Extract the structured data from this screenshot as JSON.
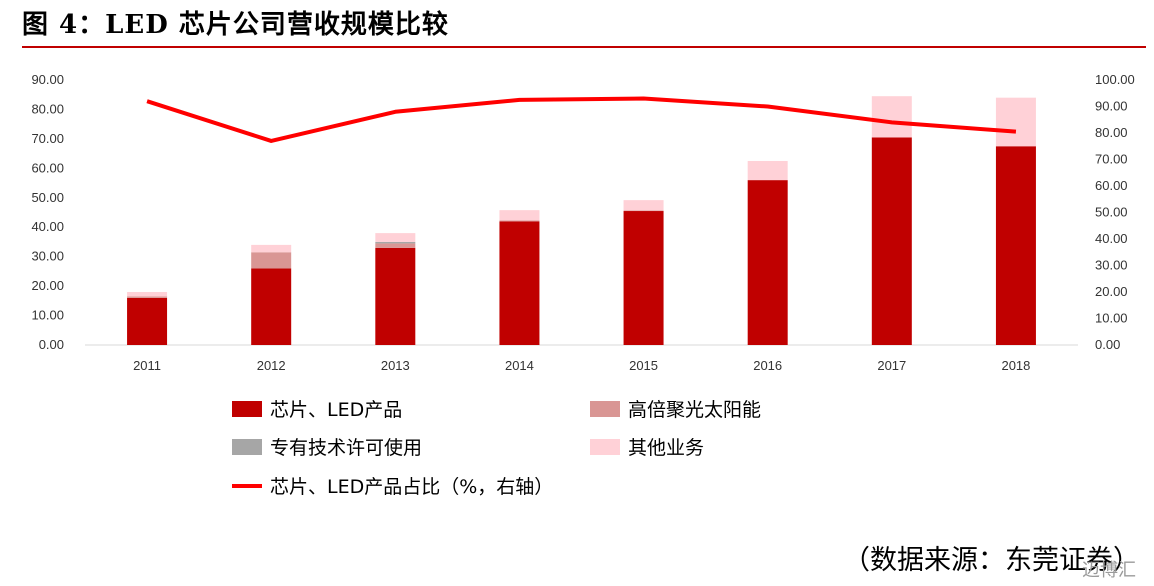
{
  "title": "图 4：LED 芯片公司营收规模比较",
  "source": "（数据来源：东莞证券）",
  "watermark": "迈博汇",
  "colors": {
    "chip": "#c00000",
    "solar": "#d99694",
    "license": "#a6a6a6",
    "other": "#ffd1d7",
    "line": "#ff0000",
    "axis": "#d9d9d9",
    "title_rule": "#c00000"
  },
  "chart_data": {
    "type": "bar",
    "stacked": true,
    "categories": [
      "2011",
      "2012",
      "2013",
      "2014",
      "2015",
      "2016",
      "2017",
      "2018"
    ],
    "left_axis": {
      "min": 0,
      "max": 90,
      "step": 10,
      "ticks": [
        "0.00",
        "10.00",
        "20.00",
        "30.00",
        "40.00",
        "50.00",
        "60.00",
        "70.00",
        "80.00",
        "90.00"
      ]
    },
    "right_axis": {
      "min": 0,
      "max": 100,
      "step": 10,
      "ticks": [
        "0.00",
        "10.00",
        "20.00",
        "30.00",
        "40.00",
        "50.00",
        "60.00",
        "70.00",
        "80.00",
        "90.00",
        "100.00"
      ]
    },
    "series": [
      {
        "name": "芯片、LED产品",
        "key": "chip",
        "axis": "left",
        "values": [
          16.0,
          26.0,
          33.0,
          42.0,
          45.5,
          56.0,
          70.5,
          67.5
        ]
      },
      {
        "name": "高倍聚光太阳能",
        "key": "solar",
        "axis": "left",
        "values": [
          0.5,
          5.5,
          1.5,
          0.3,
          0.2,
          0.0,
          0.0,
          0.0
        ]
      },
      {
        "name": "专有技术许可使用",
        "key": "license",
        "axis": "left",
        "values": [
          0.0,
          0.0,
          0.5,
          0.0,
          0.0,
          0.0,
          0.0,
          0.0
        ]
      },
      {
        "name": "其他业务",
        "key": "other",
        "axis": "left",
        "values": [
          1.5,
          2.5,
          3.0,
          3.5,
          3.5,
          6.5,
          14.0,
          16.5
        ]
      },
      {
        "name": "芯片、LED产品占比（%，右轴）",
        "key": "line",
        "axis": "right",
        "type": "line",
        "values": [
          92.0,
          77.0,
          88.0,
          92.5,
          93.0,
          90.0,
          84.0,
          80.5
        ]
      }
    ],
    "legend_position": "bottom",
    "grid": false
  }
}
